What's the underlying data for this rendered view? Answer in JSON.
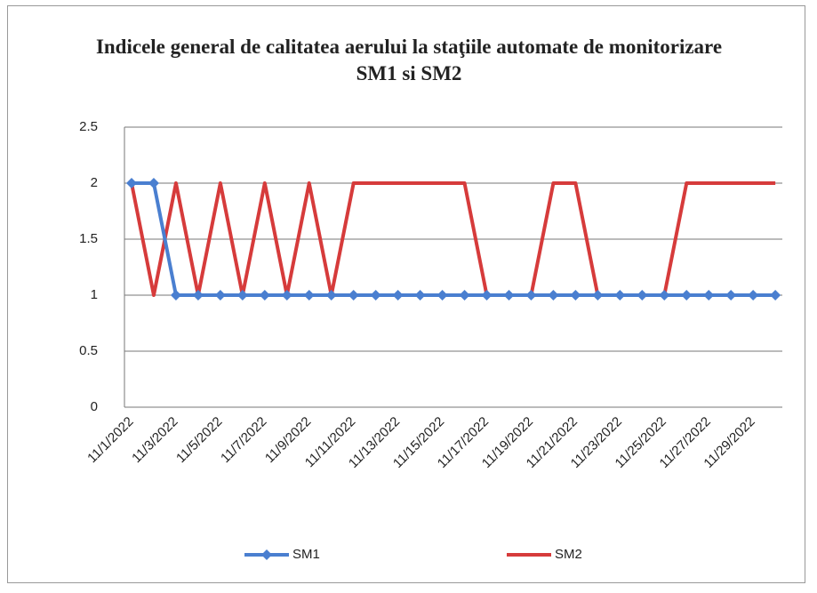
{
  "chart_data": {
    "type": "line",
    "title": "Indicele general de calitatea aerului la staţiile automate de monitorizare SM1 si SM2",
    "categories": [
      "11/1/2022",
      null,
      "11/3/2022",
      null,
      "11/5/2022",
      null,
      "11/7/2022",
      null,
      "11/9/2022",
      null,
      "11/11/2022",
      null,
      "11/13/2022",
      null,
      "11/15/2022",
      null,
      "11/17/2022",
      null,
      "11/19/2022",
      null,
      "11/21/2022",
      null,
      "11/23/2022",
      null,
      "11/25/2022",
      null,
      "11/27/2022",
      null,
      "11/29/2022",
      null
    ],
    "series": [
      {
        "name": "SM1",
        "color": "#4a7fd0",
        "marker": "diamond",
        "values": [
          2,
          2,
          1,
          1,
          1,
          1,
          1,
          1,
          1,
          1,
          1,
          1,
          1,
          1,
          1,
          1,
          1,
          1,
          1,
          1,
          1,
          1,
          1,
          1,
          1,
          1,
          1,
          1,
          1,
          1
        ]
      },
      {
        "name": "SM2",
        "color": "#d63b3b",
        "values": [
          2,
          1,
          2,
          1,
          2,
          1,
          2,
          1,
          2,
          1,
          2,
          2,
          2,
          2,
          2,
          2,
          1,
          1,
          1,
          2,
          2,
          1,
          1,
          1,
          1,
          2,
          2,
          2,
          2,
          2
        ]
      }
    ],
    "ylim": [
      0,
      2.5
    ],
    "yticks": [
      0,
      0.5,
      1,
      1.5,
      2,
      2.5
    ],
    "grid": true,
    "legend": "bottom"
  }
}
